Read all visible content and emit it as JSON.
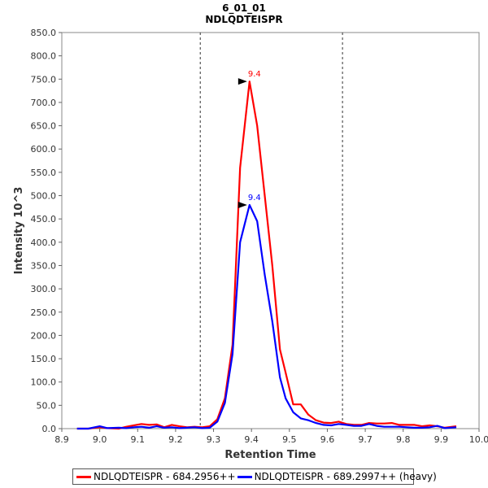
{
  "chart_data": {
    "type": "line",
    "title": "6_01_01",
    "subtitle": "NDLQDTEISPR",
    "xlabel": "Retention Time",
    "ylabel": "Intensity 10^3",
    "xlim": [
      8.9,
      10.0
    ],
    "ylim": [
      0,
      850
    ],
    "xticks": [
      "8.9",
      "9.0",
      "9.1",
      "9.2",
      "9.3",
      "9.4",
      "9.5",
      "9.6",
      "9.7",
      "9.8",
      "9.9",
      "10.0"
    ],
    "yticks": [
      "0.0",
      "50.0",
      "100.0",
      "150.0",
      "200.0",
      "250.0",
      "300.0",
      "350.0",
      "400.0",
      "450.0",
      "500.0",
      "550.0",
      "600.0",
      "650.0",
      "700.0",
      "750.0",
      "800.0",
      "850.0"
    ],
    "vlines": [
      9.265,
      9.64
    ],
    "legend_position": "bottom",
    "series": [
      {
        "name": "NDLQDTEISPR - 684.2956++",
        "color": "#ff0000",
        "peak_label": "9.4",
        "peak": [
          9.395,
          745
        ],
        "x": [
          8.94,
          8.97,
          9.0,
          9.02,
          9.05,
          9.07,
          9.09,
          9.11,
          9.13,
          9.15,
          9.17,
          9.19,
          9.21,
          9.23,
          9.25,
          9.27,
          9.29,
          9.31,
          9.33,
          9.35,
          9.37,
          9.395,
          9.415,
          9.435,
          9.455,
          9.475,
          9.49,
          9.51,
          9.53,
          9.55,
          9.57,
          9.59,
          9.61,
          9.63,
          9.65,
          9.67,
          9.69,
          9.71,
          9.73,
          9.75,
          9.77,
          9.79,
          9.81,
          9.83,
          9.85,
          9.87,
          9.89,
          9.91,
          9.94
        ],
        "y": [
          0,
          0,
          3,
          1,
          0,
          4,
          7,
          10,
          8,
          9,
          3,
          8,
          5,
          3,
          4,
          3,
          5,
          20,
          65,
          180,
          560,
          745,
          650,
          500,
          350,
          170,
          120,
          52,
          52,
          30,
          18,
          13,
          12,
          15,
          10,
          8,
          8,
          12,
          11,
          11,
          12,
          8,
          8,
          8,
          5,
          7,
          5,
          2,
          5
        ]
      },
      {
        "name": "NDLQDTEISPR - 689.2997++ (heavy)",
        "color": "#0000ff",
        "peak_label": "9.4",
        "peak": [
          9.395,
          480
        ],
        "x": [
          8.94,
          8.97,
          9.0,
          9.02,
          9.05,
          9.07,
          9.09,
          9.11,
          9.13,
          9.15,
          9.17,
          9.19,
          9.21,
          9.23,
          9.25,
          9.27,
          9.29,
          9.31,
          9.33,
          9.35,
          9.37,
          9.395,
          9.415,
          9.435,
          9.455,
          9.475,
          9.49,
          9.51,
          9.53,
          9.55,
          9.57,
          9.59,
          9.61,
          9.63,
          9.65,
          9.67,
          9.69,
          9.71,
          9.73,
          9.75,
          9.77,
          9.79,
          9.81,
          9.83,
          9.85,
          9.87,
          9.89,
          9.91,
          9.94
        ],
        "y": [
          0,
          0,
          5,
          1,
          2,
          1,
          3,
          4,
          2,
          5,
          2,
          3,
          1,
          2,
          3,
          1,
          2,
          15,
          55,
          160,
          400,
          480,
          445,
          330,
          230,
          110,
          65,
          35,
          22,
          18,
          12,
          8,
          7,
          10,
          8,
          6,
          6,
          10,
          6,
          4,
          4,
          4,
          3,
          2,
          2,
          3,
          6,
          1,
          3
        ]
      }
    ]
  }
}
